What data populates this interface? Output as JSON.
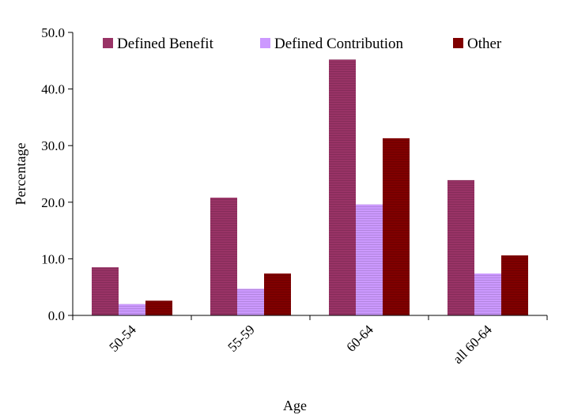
{
  "chart_data": {
    "type": "bar",
    "title": "",
    "xlabel": "Age",
    "ylabel": "Percentage",
    "ylim": [
      0,
      50
    ],
    "yticks": [
      "0.0",
      "10.0",
      "20.0",
      "30.0",
      "40.0",
      "50.0"
    ],
    "categories": [
      "50-54",
      "55-59",
      "60-64",
      "all 60-64"
    ],
    "series": [
      {
        "name": "Defined Benefit",
        "color": "#993366",
        "values": [
          8.5,
          20.8,
          45.2,
          23.9
        ]
      },
      {
        "name": "Defined Contribution",
        "color": "#CC99FF",
        "values": [
          2.0,
          4.7,
          19.6,
          7.4
        ]
      },
      {
        "name": "Other",
        "color": "#800000",
        "values": [
          2.6,
          7.4,
          31.3,
          10.6
        ]
      }
    ],
    "legend_position": "top",
    "grid": false
  }
}
